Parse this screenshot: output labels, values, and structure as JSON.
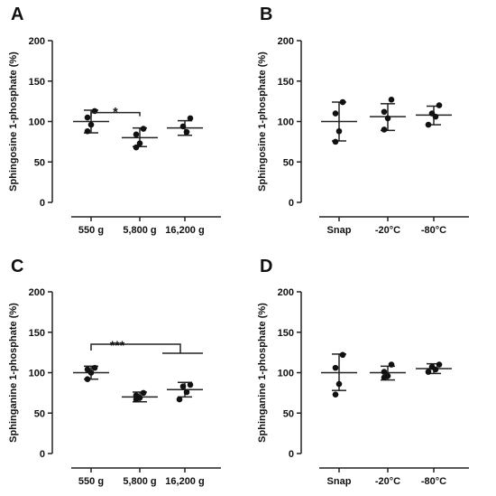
{
  "chart_data": [
    {
      "panel": "A",
      "type": "scatter",
      "ylabel": "Sphingosine 1-phosphate (%)",
      "ylim": [
        0,
        200
      ],
      "yticks": [
        0,
        50,
        100,
        150,
        200
      ],
      "categories": [
        "550 g",
        "5,800 g",
        "16,200 g"
      ],
      "groups": [
        {
          "points": [
            113,
            105,
            96,
            88
          ],
          "mean": 100,
          "sd_low": 86,
          "sd_high": 114
        },
        {
          "points": [
            91,
            84,
            73,
            68
          ],
          "mean": 80,
          "sd_low": 69,
          "sd_high": 92
        },
        {
          "points": [
            104,
            94,
            87
          ],
          "mean": 92,
          "sd_low": 83,
          "sd_high": 101
        }
      ],
      "significance": [
        {
          "label": "*",
          "from": 0,
          "to": 1,
          "y": 111
        }
      ]
    },
    {
      "panel": "B",
      "type": "scatter",
      "ylabel": "Sphingosine 1-phosphate (%)",
      "ylim": [
        0,
        200
      ],
      "yticks": [
        0,
        50,
        100,
        150,
        200
      ],
      "categories": [
        "Snap",
        "-20°C",
        "-80°C"
      ],
      "groups": [
        {
          "points": [
            124,
            110,
            88,
            75
          ],
          "mean": 100,
          "sd_low": 76,
          "sd_high": 124
        },
        {
          "points": [
            127,
            112,
            104,
            90
          ],
          "mean": 106,
          "sd_low": 89,
          "sd_high": 122
        },
        {
          "points": [
            120,
            110,
            106,
            96
          ],
          "mean": 108,
          "sd_low": 96,
          "sd_high": 119
        }
      ],
      "significance": []
    },
    {
      "panel": "C",
      "type": "scatter",
      "ylabel": "Sphinganine 1-phosphate (%)",
      "ylim": [
        0,
        200
      ],
      "yticks": [
        0,
        50,
        100,
        150,
        200
      ],
      "categories": [
        "550 g",
        "5,800 g",
        "16,200 g"
      ],
      "groups": [
        {
          "points": [
            106,
            104,
            100,
            92
          ],
          "mean": 100,
          "sd_low": 92,
          "sd_high": 108
        },
        {
          "points": [
            75,
            72,
            69,
            67
          ],
          "mean": 70,
          "sd_low": 64,
          "sd_high": 76
        },
        {
          "points": [
            85,
            83,
            76,
            67
          ],
          "mean": 79,
          "sd_low": 70,
          "sd_high": 88
        }
      ],
      "significance": [
        {
          "label": "***",
          "from": 0,
          "to": 2,
          "y": 124
        }
      ]
    },
    {
      "panel": "D",
      "type": "scatter",
      "ylabel": "Sphinganine 1-phosphate (%)",
      "ylim": [
        0,
        200
      ],
      "yticks": [
        0,
        50,
        100,
        150,
        200
      ],
      "categories": [
        "Snap",
        "-20°C",
        "-80°C"
      ],
      "groups": [
        {
          "points": [
            122,
            106,
            86,
            73
          ],
          "mean": 100,
          "sd_low": 78,
          "sd_high": 123
        },
        {
          "points": [
            110,
            101,
            96,
            94
          ],
          "mean": 100,
          "sd_low": 91,
          "sd_high": 108
        },
        {
          "points": [
            110,
            107,
            104,
            101
          ],
          "mean": 105,
          "sd_low": 99,
          "sd_high": 111
        }
      ],
      "significance": []
    }
  ]
}
